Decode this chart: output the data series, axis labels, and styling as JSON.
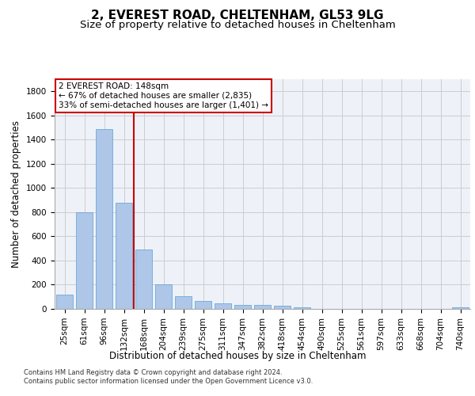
{
  "title1": "2, EVEREST ROAD, CHELTENHAM, GL53 9LG",
  "title2": "Size of property relative to detached houses in Cheltenham",
  "xlabel": "Distribution of detached houses by size in Cheltenham",
  "ylabel": "Number of detached properties",
  "categories": [
    "25sqm",
    "61sqm",
    "96sqm",
    "132sqm",
    "168sqm",
    "204sqm",
    "239sqm",
    "275sqm",
    "311sqm",
    "347sqm",
    "382sqm",
    "418sqm",
    "454sqm",
    "490sqm",
    "525sqm",
    "561sqm",
    "597sqm",
    "633sqm",
    "668sqm",
    "704sqm",
    "740sqm"
  ],
  "values": [
    120,
    800,
    1490,
    880,
    490,
    205,
    105,
    65,
    45,
    35,
    30,
    25,
    10,
    0,
    0,
    0,
    0,
    0,
    0,
    0,
    15
  ],
  "bar_color": "#aec6e8",
  "bar_edge_color": "#5a9fd4",
  "property_line_x": 3.5,
  "annotation_text": "2 EVEREST ROAD: 148sqm\n← 67% of detached houses are smaller (2,835)\n33% of semi-detached houses are larger (1,401) →",
  "annotation_box_color": "#ffffff",
  "annotation_box_edge": "#cc0000",
  "vline_color": "#cc0000",
  "ylim": [
    0,
    1900
  ],
  "yticks": [
    0,
    200,
    400,
    600,
    800,
    1000,
    1200,
    1400,
    1600,
    1800
  ],
  "grid_color": "#cccccc",
  "bg_color": "#eef2f8",
  "footer1": "Contains HM Land Registry data © Crown copyright and database right 2024.",
  "footer2": "Contains public sector information licensed under the Open Government Licence v3.0.",
  "title_fontsize": 11,
  "subtitle_fontsize": 9.5,
  "axis_label_fontsize": 8.5,
  "tick_fontsize": 7.5,
  "annotation_fontsize": 7.5,
  "footer_fontsize": 6.0
}
